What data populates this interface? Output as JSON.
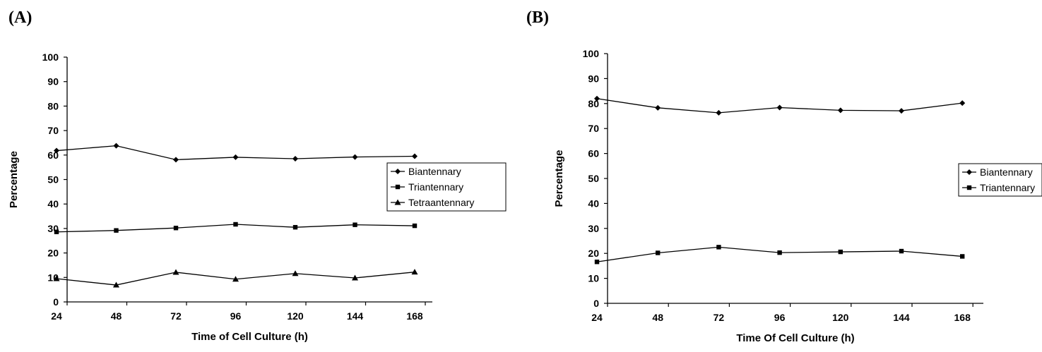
{
  "panels": [
    {
      "label": "(A)",
      "chart_data": {
        "type": "line",
        "title": "",
        "xlabel": "Time of Cell Culture (h)",
        "ylabel": "Percentage",
        "categories": [
          "24",
          "48",
          "72",
          "96",
          "120",
          "144",
          "168"
        ],
        "ylim": [
          0,
          100
        ],
        "yticks": [
          0,
          10,
          20,
          30,
          40,
          50,
          60,
          70,
          80,
          90,
          100
        ],
        "grid": false,
        "legend_position": "right",
        "series": [
          {
            "name": "Biantennary",
            "marker": "diamond",
            "values": [
              61.8,
              63.8,
              58.1,
              59.1,
              58.5,
              59.2,
              59.5
            ]
          },
          {
            "name": "Triantennary",
            "marker": "square",
            "values": [
              28.6,
              29.2,
              30.2,
              31.7,
              30.5,
              31.5,
              31.1
            ]
          },
          {
            "name": "Tetraantennary",
            "marker": "triangle",
            "values": [
              9.5,
              6.9,
              12.1,
              9.3,
              11.6,
              9.8,
              12.2
            ]
          }
        ]
      }
    },
    {
      "label": "(B)",
      "chart_data": {
        "type": "line",
        "title": "",
        "xlabel": "Time Of Cell Culture (h)",
        "ylabel": "Percentage",
        "categories": [
          "24",
          "48",
          "72",
          "96",
          "120",
          "144",
          "168"
        ],
        "ylim": [
          0,
          100
        ],
        "yticks": [
          0,
          10,
          20,
          30,
          40,
          50,
          60,
          70,
          80,
          90,
          100
        ],
        "grid": false,
        "legend_position": "right",
        "series": [
          {
            "name": "Biantennary",
            "marker": "diamond",
            "values": [
              82.0,
              78.3,
              76.3,
              78.4,
              77.3,
              77.1,
              80.2
            ]
          },
          {
            "name": "Triantennary",
            "marker": "square",
            "values": [
              16.6,
              20.2,
              22.5,
              20.3,
              20.6,
              20.9,
              18.8
            ]
          }
        ]
      }
    }
  ]
}
